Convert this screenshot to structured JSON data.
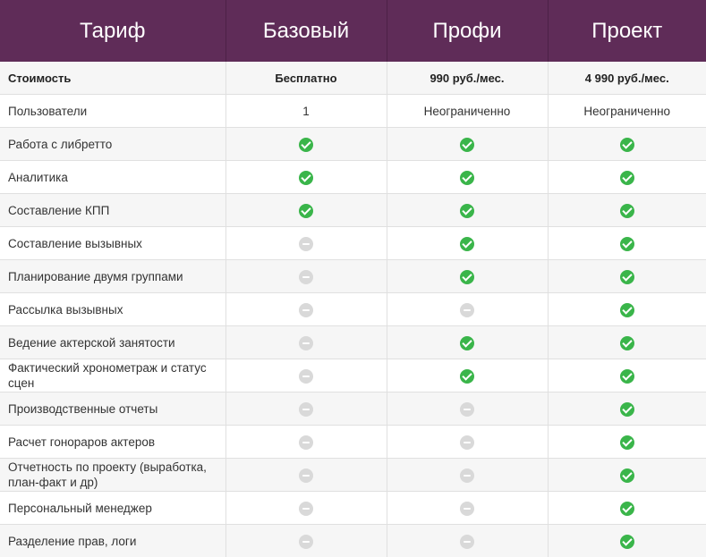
{
  "header": {
    "col0": "Тариф",
    "col1": "Базовый",
    "col2": "Профи",
    "col3": "Проект"
  },
  "price": {
    "label": "Стоимость",
    "basic": "Бесплатно",
    "pro": "990 руб./мес.",
    "project": "4 990 руб./мес."
  },
  "users": {
    "label": "Пользователи",
    "basic": "1",
    "pro": "Неограниченно",
    "project": "Неограниченно"
  },
  "icons": {
    "yes": "check-circle-icon",
    "no": "minus-circle-icon"
  },
  "colors": {
    "header_bg": "#5f2c58",
    "check": "#3ab54a",
    "unavailable": "#d9d9d9"
  },
  "features": [
    {
      "label": "Работа с либретто",
      "basic": true,
      "pro": true,
      "project": true
    },
    {
      "label": "Аналитика",
      "basic": true,
      "pro": true,
      "project": true
    },
    {
      "label": "Составление КПП",
      "basic": true,
      "pro": true,
      "project": true
    },
    {
      "label": "Составление вызывных",
      "basic": false,
      "pro": true,
      "project": true
    },
    {
      "label": "Планирование двумя группами",
      "basic": false,
      "pro": true,
      "project": true
    },
    {
      "label": "Рассылка вызывных",
      "basic": false,
      "pro": false,
      "project": true
    },
    {
      "label": "Ведение актерской занятости",
      "basic": false,
      "pro": true,
      "project": true
    },
    {
      "label": "Фактический хронометраж и статус сцен",
      "basic": false,
      "pro": true,
      "project": true
    },
    {
      "label": "Производственные отчеты",
      "basic": false,
      "pro": false,
      "project": true
    },
    {
      "label": "Расчет гонораров актеров",
      "basic": false,
      "pro": false,
      "project": true
    },
    {
      "label": "Отчетность по проекту (выработка, план-факт и др)",
      "basic": false,
      "pro": false,
      "project": true
    },
    {
      "label": "Персональный менеджер",
      "basic": false,
      "pro": false,
      "project": true
    },
    {
      "label": "Разделение прав, логи",
      "basic": false,
      "pro": false,
      "project": true
    }
  ]
}
